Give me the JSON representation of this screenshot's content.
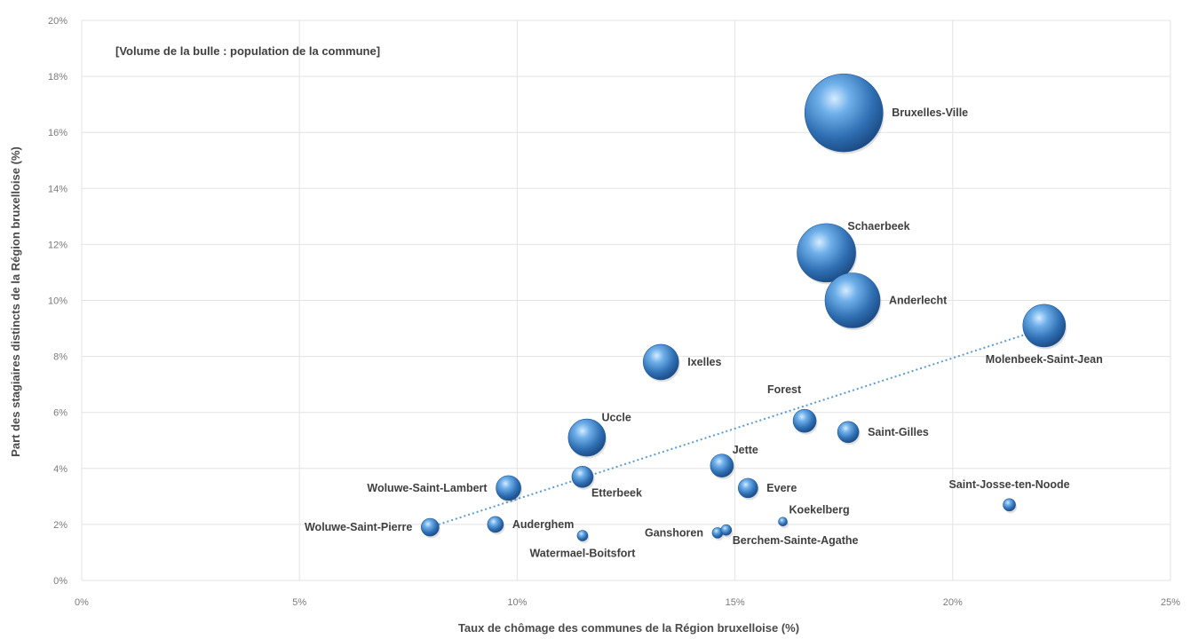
{
  "chart_data": {
    "type": "scatter",
    "subtype": "bubble",
    "annotation": "[Volume de la bulle : population de la commune]",
    "xlabel": "Taux de chômage des communes de la Région bruxelloise (%)",
    "ylabel": "Part des stagiaires distincts de la Région bruxelloise (%)",
    "xlim": [
      0,
      25
    ],
    "ylim": [
      0,
      20
    ],
    "x_ticks": [
      0,
      5,
      10,
      15,
      20,
      25
    ],
    "x_tick_labels": [
      "0%",
      "5%",
      "10%",
      "15%",
      "20%",
      "25%"
    ],
    "y_ticks": [
      0,
      2,
      4,
      6,
      8,
      10,
      12,
      14,
      16,
      18,
      20
    ],
    "y_tick_labels": [
      "0%",
      "2%",
      "4%",
      "6%",
      "8%",
      "10%",
      "12%",
      "14%",
      "16%",
      "18%",
      "20%"
    ],
    "grid": true,
    "bubble_color": "#3a7fc1",
    "trendline": {
      "style": "dotted",
      "color": "#5b9bd5",
      "from": [
        8.0,
        1.9
      ],
      "to": [
        22.1,
        9.0
      ]
    },
    "points": [
      {
        "name": "Bruxelles-Ville",
        "x": 17.5,
        "y": 16.7,
        "size": 44,
        "label_pos": "right"
      },
      {
        "name": "Schaerbeek",
        "x": 17.1,
        "y": 11.7,
        "size": 33,
        "label_pos": "upper-right"
      },
      {
        "name": "Anderlecht",
        "x": 17.7,
        "y": 10.0,
        "size": 31,
        "label_pos": "right"
      },
      {
        "name": "Molenbeek-Saint-Jean",
        "x": 22.1,
        "y": 9.1,
        "size": 24,
        "label_pos": "below"
      },
      {
        "name": "Ixelles",
        "x": 13.3,
        "y": 7.8,
        "size": 20,
        "label_pos": "right"
      },
      {
        "name": "Uccle",
        "x": 11.6,
        "y": 5.1,
        "size": 21,
        "label_pos": "upper-right"
      },
      {
        "name": "Forest",
        "x": 16.6,
        "y": 5.7,
        "size": 13,
        "label_pos": "upper-left"
      },
      {
        "name": "Saint-Gilles",
        "x": 17.6,
        "y": 5.3,
        "size": 12,
        "label_pos": "right"
      },
      {
        "name": "Jette",
        "x": 14.7,
        "y": 4.1,
        "size": 13,
        "label_pos": "upper-right"
      },
      {
        "name": "Evere",
        "x": 15.3,
        "y": 3.3,
        "size": 11,
        "label_pos": "right"
      },
      {
        "name": "Etterbeek",
        "x": 11.5,
        "y": 3.7,
        "size": 12,
        "label_pos": "lower-right"
      },
      {
        "name": "Woluwe-Saint-Lambert",
        "x": 9.8,
        "y": 3.3,
        "size": 14,
        "label_pos": "left"
      },
      {
        "name": "Woluwe-Saint-Pierre",
        "x": 8.0,
        "y": 1.9,
        "size": 10,
        "label_pos": "left"
      },
      {
        "name": "Auderghem",
        "x": 9.5,
        "y": 2.0,
        "size": 9,
        "label_pos": "right"
      },
      {
        "name": "Watermael-Boitsfort",
        "x": 11.5,
        "y": 1.6,
        "size": 6,
        "label_pos": "below"
      },
      {
        "name": "Ganshoren",
        "x": 14.6,
        "y": 1.7,
        "size": 6,
        "label_pos": "left"
      },
      {
        "name": "Berchem-Sainte-Agathe",
        "x": 14.8,
        "y": 1.8,
        "size": 6,
        "label_pos": "lower-right"
      },
      {
        "name": "Koekelberg",
        "x": 16.1,
        "y": 2.1,
        "size": 5,
        "label_pos": "upper-right"
      },
      {
        "name": "Saint-Josse-ten-Noode",
        "x": 21.3,
        "y": 2.7,
        "size": 7,
        "label_pos": "above"
      }
    ]
  }
}
